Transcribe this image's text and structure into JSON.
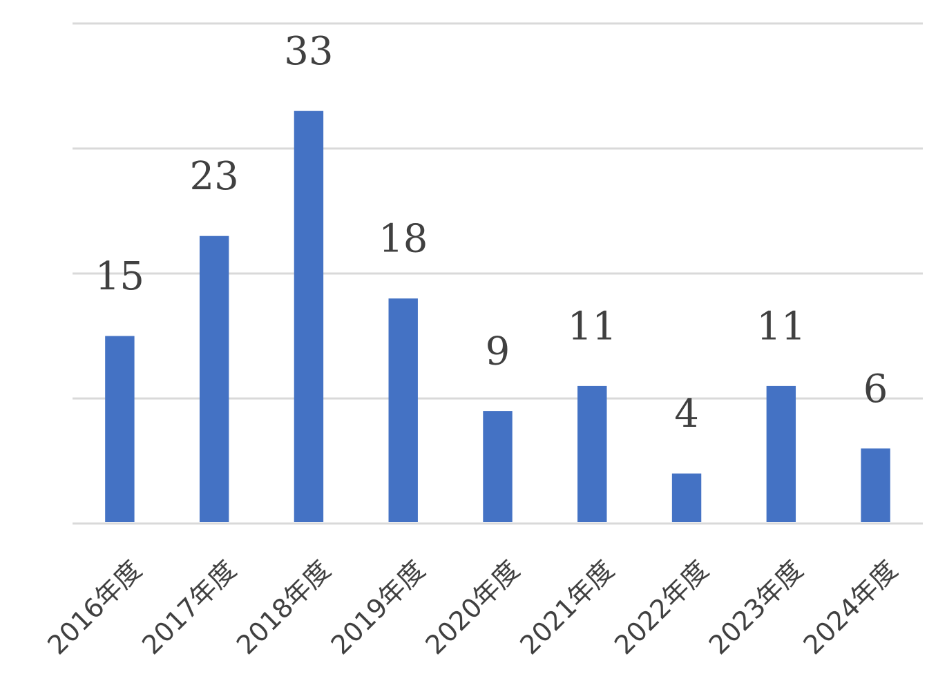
{
  "chart_data": {
    "type": "bar",
    "categories": [
      "2016年度",
      "2017年度",
      "2018年度",
      "2019年度",
      "2020年度",
      "2021年度",
      "2022年度",
      "2023年度",
      "2024年度"
    ],
    "values": [
      15,
      23,
      33,
      18,
      9,
      11,
      4,
      11,
      6
    ],
    "color": "#4472c4",
    "ylim": [
      0,
      40
    ],
    "yticks": [
      0,
      10,
      20,
      30,
      40
    ],
    "grid": true
  }
}
